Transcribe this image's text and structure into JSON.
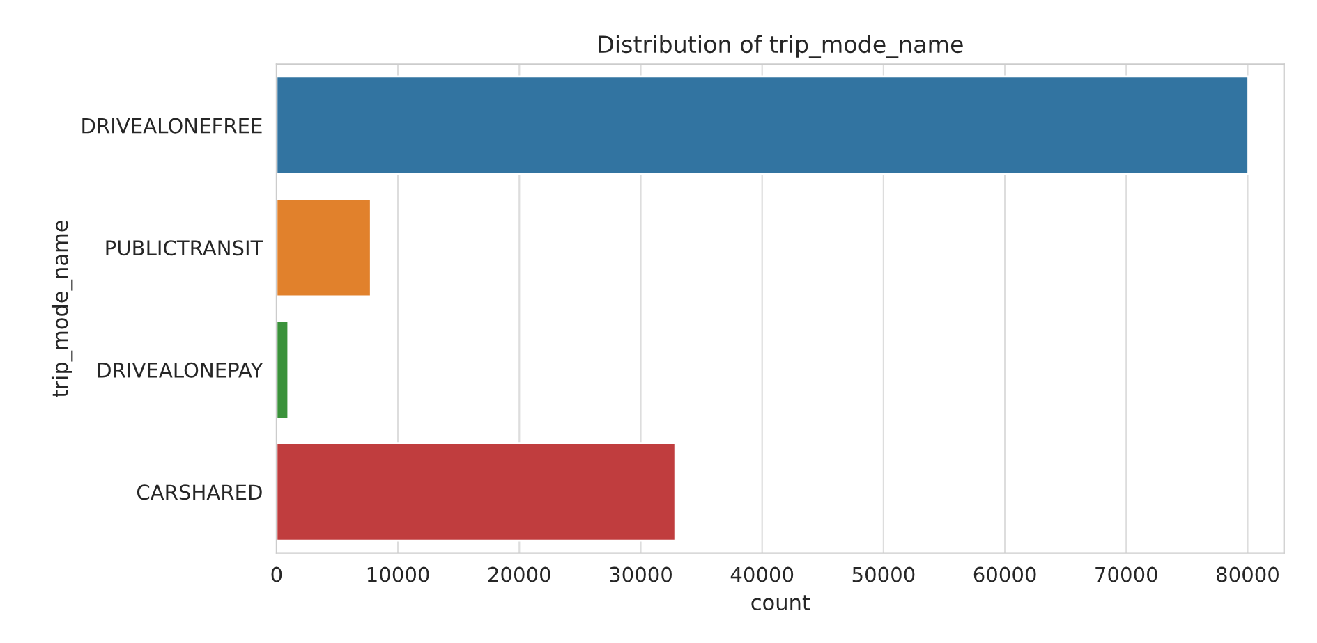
{
  "chart_data": {
    "type": "bar",
    "orientation": "horizontal",
    "title": "Distribution of trip_mode_name",
    "xlabel": "count",
    "ylabel": "trip_mode_name",
    "categories": [
      "DRIVEALONEFREE",
      "PUBLICTRANSIT",
      "DRIVEALONEPAY",
      "CARSHARED"
    ],
    "values": [
      80060,
      7770,
      970,
      32850
    ],
    "colors": [
      "#3274a1",
      "#e1812c",
      "#3a923a",
      "#c03d3e"
    ],
    "xlim": [
      0,
      83000
    ],
    "xticks": [
      0,
      10000,
      20000,
      30000,
      40000,
      50000,
      60000,
      70000,
      80000
    ],
    "grid": "x"
  }
}
